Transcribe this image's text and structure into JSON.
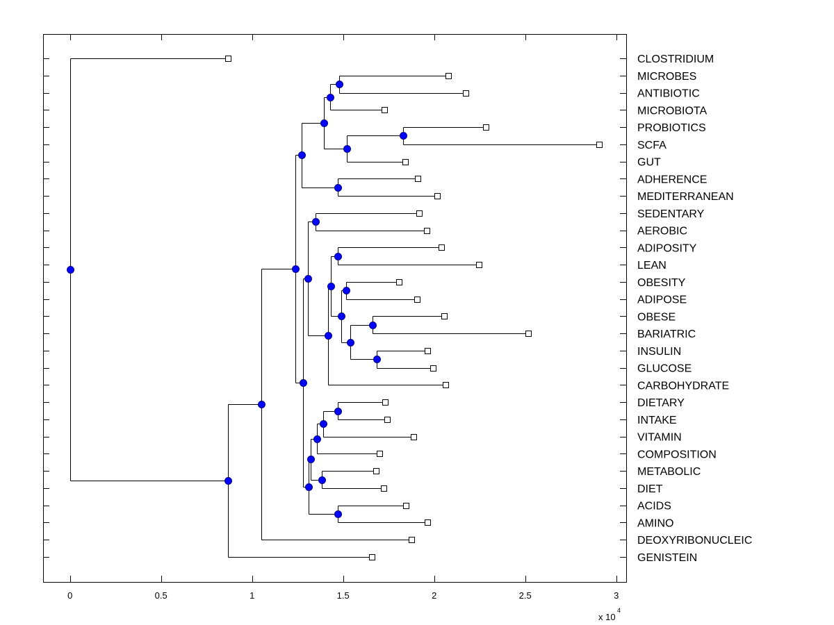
{
  "chart_data": {
    "type": "dendrogram",
    "title": "",
    "xlabel": "",
    "ylabel": "",
    "x_multiplier_label": "x 10",
    "x_multiplier_exponent": "4",
    "xlim": [
      -0.145,
      3.065
    ],
    "x_ticks": [
      0,
      0.5,
      1,
      1.5,
      2,
      2.5,
      3
    ],
    "x_tick_labels": [
      "0",
      "0.5",
      "1",
      "1.5",
      "2",
      "2.5",
      "3"
    ],
    "grid": false,
    "node_color": "#0000ff",
    "leaves": [
      {
        "label": "CLOSTRIDIUM",
        "value": 0.868
      },
      {
        "label": "MICROBES",
        "value": 2.077
      },
      {
        "label": "ANTIBIOTIC",
        "value": 2.173
      },
      {
        "label": "MICROBIOTA",
        "value": 1.726
      },
      {
        "label": "PROBIOTICS",
        "value": 2.284
      },
      {
        "label": "SCFA",
        "value": 2.906
      },
      {
        "label": "GUT",
        "value": 1.841
      },
      {
        "label": "ADHERENCE",
        "value": 1.91
      },
      {
        "label": "MEDITERRANEAN",
        "value": 2.016
      },
      {
        "label": "SEDENTARY",
        "value": 1.917
      },
      {
        "label": "AEROBIC",
        "value": 1.959
      },
      {
        "label": "ADIPOSITY",
        "value": 2.039
      },
      {
        "label": "LEAN",
        "value": 2.245
      },
      {
        "label": "OBESITY",
        "value": 1.806
      },
      {
        "label": "ADIPOSE",
        "value": 1.906
      },
      {
        "label": "OBESE",
        "value": 2.054
      },
      {
        "label": "BARIATRIC",
        "value": 2.516
      },
      {
        "label": "INSULIN",
        "value": 1.963
      },
      {
        "label": "GLUCOSE",
        "value": 1.993
      },
      {
        "label": "CARBOHYDRATE",
        "value": 2.062
      },
      {
        "label": "DIETARY",
        "value": 1.73
      },
      {
        "label": "INTAKE",
        "value": 1.741
      },
      {
        "label": "VITAMIN",
        "value": 1.886
      },
      {
        "label": "COMPOSITION",
        "value": 1.7
      },
      {
        "label": "METABOLIC",
        "value": 1.681
      },
      {
        "label": "DIET",
        "value": 1.723
      },
      {
        "label": "ACIDS",
        "value": 1.845
      },
      {
        "label": "AMINO",
        "value": 1.963
      },
      {
        "label": "DEOXYRIBONUCLEIC",
        "value": 1.875
      },
      {
        "label": "GENISTEIN",
        "value": 1.658
      }
    ],
    "nodes": [
      {
        "id": "n_root",
        "value": 0.0,
        "children": [
          "L0",
          "n_a"
        ]
      },
      {
        "id": "n_a",
        "value": 0.868,
        "children": [
          "n_b",
          "L29"
        ]
      },
      {
        "id": "n_b",
        "value": 1.051,
        "children": [
          "n_c",
          "L28"
        ]
      },
      {
        "id": "n_c",
        "value": 1.238,
        "children": [
          "n_d",
          "n_q"
        ]
      },
      {
        "id": "n_d",
        "value": 1.272,
        "children": [
          "n_e",
          "n_j"
        ]
      },
      {
        "id": "n_e",
        "value": 1.395,
        "children": [
          "n_f",
          "n_h"
        ]
      },
      {
        "id": "n_f",
        "value": 1.429,
        "children": [
          "n_g",
          "L3"
        ]
      },
      {
        "id": "n_g",
        "value": 1.479,
        "children": [
          "L1",
          "L2"
        ]
      },
      {
        "id": "n_h",
        "value": 1.52,
        "children": [
          "n_i",
          "L6"
        ]
      },
      {
        "id": "n_i",
        "value": 1.829,
        "children": [
          "L4",
          "L5"
        ]
      },
      {
        "id": "n_j",
        "value": 1.471,
        "children": [
          "L7",
          "L8"
        ]
      },
      {
        "id": "n_q",
        "value": 1.28,
        "children": [
          "n_k",
          "n_r"
        ]
      },
      {
        "id": "n_k",
        "value": 1.307,
        "children": [
          "n_l",
          "n_m"
        ]
      },
      {
        "id": "n_l",
        "value": 1.349,
        "children": [
          "L9",
          "L10"
        ]
      },
      {
        "id": "n_m",
        "value": 1.418,
        "children": [
          "n_n",
          "L19"
        ]
      },
      {
        "id": "n_n",
        "value": 1.433,
        "children": [
          "n_o",
          "n_p"
        ]
      },
      {
        "id": "n_o",
        "value": 1.471,
        "children": [
          "L11",
          "L12"
        ]
      },
      {
        "id": "n_p",
        "value": 1.49,
        "children": [
          "n_p1",
          "n_p2"
        ]
      },
      {
        "id": "n_p1",
        "value": 1.517,
        "children": [
          "L13",
          "L14"
        ]
      },
      {
        "id": "n_p2",
        "value": 1.539,
        "children": [
          "n_p3",
          "n_p4"
        ]
      },
      {
        "id": "n_p3",
        "value": 1.662,
        "children": [
          "L15",
          "L16"
        ]
      },
      {
        "id": "n_p4",
        "value": 1.685,
        "children": [
          "L17",
          "L18"
        ]
      },
      {
        "id": "n_r",
        "value": 1.311,
        "children": [
          "n_s",
          "n_w"
        ]
      },
      {
        "id": "n_s",
        "value": 1.322,
        "children": [
          "n_t",
          "n_v"
        ]
      },
      {
        "id": "n_t",
        "value": 1.356,
        "children": [
          "n_u",
          "L23"
        ]
      },
      {
        "id": "n_u",
        "value": 1.391,
        "children": [
          "n_u1",
          "L22"
        ]
      },
      {
        "id": "n_u1",
        "value": 1.471,
        "children": [
          "L20",
          "L21"
        ]
      },
      {
        "id": "n_v",
        "value": 1.383,
        "children": [
          "L24",
          "L25"
        ]
      },
      {
        "id": "n_w",
        "value": 1.471,
        "children": [
          "L26",
          "L27"
        ]
      }
    ]
  }
}
